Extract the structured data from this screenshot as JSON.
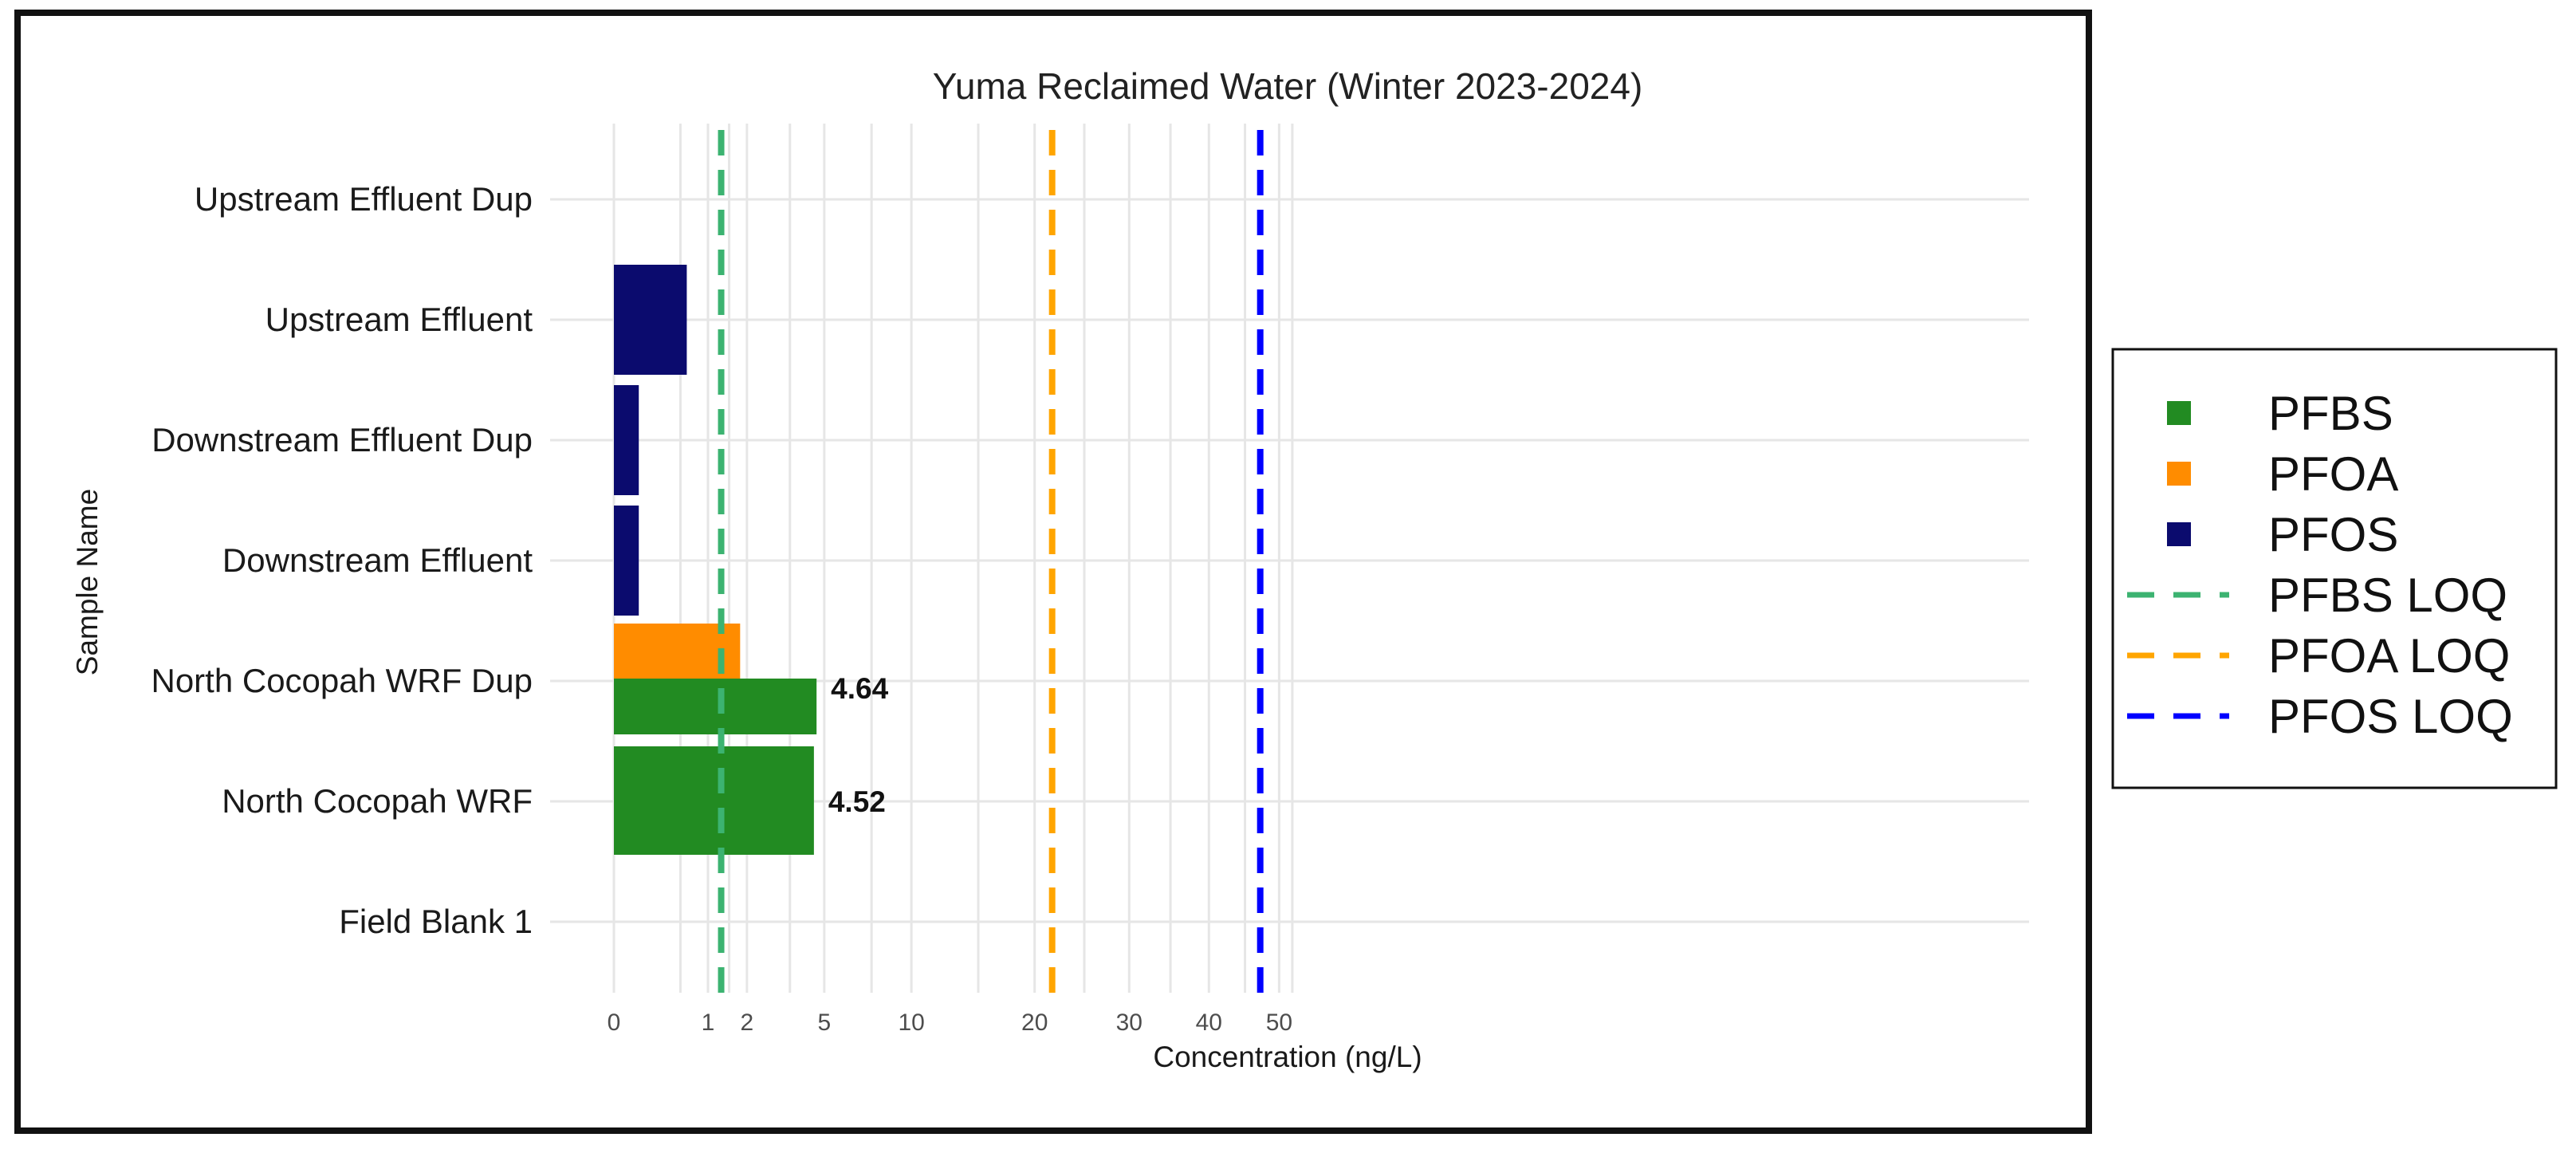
{
  "chart_data": {
    "type": "bar",
    "orientation": "horizontal",
    "title": "Yuma Reclaimed Water (Winter 2023-2024)",
    "xlabel": "Concentration (ng/L)",
    "ylabel": "Sample Name",
    "x_scale": "sqrt",
    "xlim": [
      0,
      52
    ],
    "x_ticks": [
      0,
      1,
      2,
      5,
      10,
      20,
      30,
      40,
      50
    ],
    "x_tick_labels": [
      "0",
      "1",
      "2",
      "5",
      "10",
      "20",
      "30",
      "40",
      "50"
    ],
    "grid": true,
    "categories": [
      "Field Blank 1",
      "North Cocopah WRF",
      "North Cocopah WRF Dup",
      "Downstream Effluent",
      "Downstream Effluent Dup",
      "Upstream Effluent",
      "Upstream Effluent Dup"
    ],
    "series": [
      {
        "name": "PFBS",
        "color": "#228b22",
        "values": [
          0,
          4.52,
          4.64,
          0,
          0,
          0,
          0
        ]
      },
      {
        "name": "PFOA",
        "color": "#ff8c00",
        "values": [
          0,
          0,
          1.8,
          0,
          0,
          0,
          0
        ]
      },
      {
        "name": "PFOS",
        "color": "#0b0b6e",
        "values": [
          0,
          0,
          0,
          0.07,
          0.07,
          0.6,
          0
        ]
      }
    ],
    "data_labels": [
      {
        "category": "North Cocopah WRF",
        "series": "PFBS",
        "text": "4.52"
      },
      {
        "category": "North Cocopah WRF Dup",
        "series": "PFBS",
        "text": "4.64"
      }
    ],
    "reference_lines": [
      {
        "name": "PFBS LOQ",
        "value": 1.3,
        "color": "#3cb371",
        "style": "dashed"
      },
      {
        "name": "PFOA LOQ",
        "value": 21.7,
        "color": "#ffa500",
        "style": "dashed"
      },
      {
        "name": "PFOS LOQ",
        "value": 47.2,
        "color": "#0000ff",
        "style": "dashed"
      }
    ],
    "legend": {
      "placement": "right",
      "entries": [
        {
          "label": "PFBS",
          "kind": "square",
          "color": "#228b22"
        },
        {
          "label": "PFOA",
          "kind": "square",
          "color": "#ff8c00"
        },
        {
          "label": "PFOS",
          "kind": "square",
          "color": "#0b0b6e"
        },
        {
          "label": "PFBS LOQ",
          "kind": "dash",
          "color": "#3cb371"
        },
        {
          "label": "PFOA LOQ",
          "kind": "dash",
          "color": "#ffa500"
        },
        {
          "label": "PFOS LOQ",
          "kind": "dash",
          "color": "#0000ff"
        }
      ]
    }
  }
}
